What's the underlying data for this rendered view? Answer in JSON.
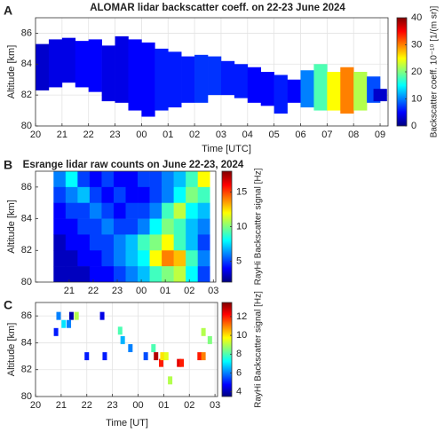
{
  "chart_data": [
    {
      "type": "rangebar",
      "panel": "A",
      "title": "ALOMAR lidar backscatter coeff. on 22-23 June 2024",
      "x_label": "Time [UTC]",
      "y_label": "Altitude [km]",
      "colorbar_label": "Backscatter coeff. 10⁻¹⁰ [1/(m sr)]",
      "colormap": "jet",
      "grid": true,
      "xlim": [
        20,
        33.3
      ],
      "ylim": [
        80,
        87
      ],
      "clim": [
        0,
        40
      ],
      "xticks": [
        20,
        21,
        22,
        23,
        {
          "value": 24,
          "label": "00"
        },
        {
          "value": 25,
          "label": "01"
        },
        {
          "value": 26,
          "label": "02"
        },
        {
          "value": 27,
          "label": "03"
        },
        {
          "value": 28,
          "label": "04"
        },
        {
          "value": 29,
          "label": "05"
        },
        {
          "value": 30,
          "label": "06"
        },
        {
          "value": 31,
          "label": "07"
        },
        {
          "value": 32,
          "label": "08"
        },
        {
          "value": 33,
          "label": "09"
        }
      ],
      "yticks": [
        80,
        82,
        84,
        86
      ],
      "cticks": [
        0,
        10,
        20,
        30,
        40
      ],
      "x": [
        20.25,
        20.75,
        21.25,
        21.75,
        22.25,
        22.75,
        23.25,
        23.75,
        24.25,
        24.75,
        25.25,
        25.75,
        26.25,
        26.75,
        27.25,
        27.75,
        28.25,
        28.75,
        29.25,
        29.75,
        30.25,
        30.75,
        31.25,
        31.75,
        32.25,
        32.75,
        33.0
      ],
      "y_low": [
        82.3,
        82.5,
        82.8,
        82.5,
        82.2,
        81.6,
        81.5,
        81.0,
        80.6,
        81.0,
        81.2,
        81.5,
        81.5,
        82.0,
        82.0,
        81.8,
        81.5,
        81.3,
        80.8,
        81.5,
        81.2,
        81.0,
        81.0,
        80.8,
        81.0,
        81.5,
        81.6
      ],
      "y_high": [
        85.3,
        85.6,
        85.7,
        85.5,
        85.6,
        85.2,
        85.8,
        85.6,
        85.4,
        85.0,
        84.8,
        84.5,
        84.6,
        84.5,
        84.2,
        84.0,
        83.8,
        83.5,
        83.3,
        83.0,
        83.6,
        84.0,
        83.5,
        83.8,
        83.5,
        83.2,
        82.4
      ],
      "values": [
        3,
        4,
        4,
        5,
        5,
        4,
        4,
        5,
        5,
        6,
        6,
        6,
        7,
        7,
        6,
        6,
        5,
        5,
        6,
        5,
        10,
        18,
        25,
        30,
        22,
        8,
        3
      ]
    },
    {
      "type": "heatmap",
      "panel": "B",
      "title": "Esrange lidar raw counts on June 22-23, 2024",
      "y_label": "Altitude [km]",
      "colorbar_label": "RayHi Backscatter signal [Hz]",
      "colormap": "jet",
      "grid": false,
      "xlim": [
        19.6,
        27.1
      ],
      "ylim": [
        80,
        87
      ],
      "clim": [
        2,
        18
      ],
      "xticks": [
        21,
        22,
        23,
        {
          "value": 24,
          "label": "00"
        },
        {
          "value": 25,
          "label": "01"
        },
        {
          "value": 26,
          "label": "02"
        },
        {
          "value": 27,
          "label": "03"
        }
      ],
      "yticks": [
        80,
        82,
        84,
        86
      ],
      "cticks": [
        5,
        10,
        15
      ],
      "x": [
        20.6,
        21.1,
        21.6,
        22.1,
        22.6,
        23.1,
        23.6,
        24.1,
        24.6,
        25.1,
        25.6,
        26.1,
        26.6
      ],
      "y": [
        86.5,
        85.5,
        84.5,
        83.5,
        82.5,
        81.5,
        80.5
      ],
      "z": [
        [
          6,
          8,
          5,
          4,
          5,
          4,
          4,
          5,
          5,
          6,
          7,
          9,
          12
        ],
        [
          5,
          6,
          7,
          5,
          4,
          5,
          4,
          4,
          5,
          6,
          8,
          10,
          9
        ],
        [
          4,
          5,
          5,
          6,
          5,
          4,
          5,
          5,
          6,
          9,
          11,
          8,
          7
        ],
        [
          4,
          4,
          5,
          5,
          6,
          5,
          5,
          6,
          8,
          10,
          9,
          7,
          6
        ],
        [
          3,
          4,
          4,
          5,
          5,
          6,
          7,
          9,
          10,
          12,
          9,
          7,
          5
        ],
        [
          3,
          3,
          4,
          4,
          5,
          6,
          7,
          8,
          12,
          14,
          13,
          9,
          6
        ],
        [
          3,
          3,
          3,
          4,
          4,
          5,
          6,
          7,
          9,
          10,
          11,
          8,
          5
        ]
      ]
    },
    {
      "type": "scatter",
      "panel": "C",
      "x_label": "Time [UT]",
      "y_label": "Altitude [km]",
      "colorbar_label": "RayHi Backscatter signal [Hz]",
      "colormap": "jet",
      "grid": true,
      "xlim": [
        20,
        27.1
      ],
      "ylim": [
        80,
        87
      ],
      "clim": [
        3.5,
        13.5
      ],
      "xticks": [
        20,
        21,
        22,
        23,
        {
          "value": 24,
          "label": "00"
        },
        {
          "value": 25,
          "label": "01"
        },
        {
          "value": 26,
          "label": "02"
        },
        {
          "value": 27,
          "label": "03"
        }
      ],
      "yticks": [
        80,
        82,
        84,
        86
      ],
      "cticks": [
        4,
        6,
        8,
        10,
        12
      ],
      "x": [
        20.8,
        20.9,
        21.1,
        21.3,
        21.4,
        21.6,
        22.0,
        22.6,
        22.7,
        23.3,
        23.4,
        23.7,
        24.3,
        24.6,
        24.7,
        24.9,
        24.95,
        25.1,
        25.25,
        25.6,
        25.7,
        26.4,
        26.55,
        26.55,
        26.8
      ],
      "y": [
        84.8,
        86.0,
        85.4,
        85.4,
        86.0,
        86.0,
        83.0,
        86.0,
        83.0,
        84.9,
        84.2,
        83.6,
        83.0,
        83.6,
        83.0,
        82.5,
        83.0,
        83.0,
        81.2,
        82.5,
        82.5,
        83.0,
        84.8,
        83.0,
        84.2
      ],
      "values": [
        5,
        6,
        7,
        6,
        4,
        9,
        5,
        4.5,
        5,
        8,
        6.5,
        6,
        5.5,
        8,
        13,
        12,
        10,
        9.5,
        9,
        12.5,
        12,
        12,
        9,
        11,
        8.5
      ]
    }
  ]
}
